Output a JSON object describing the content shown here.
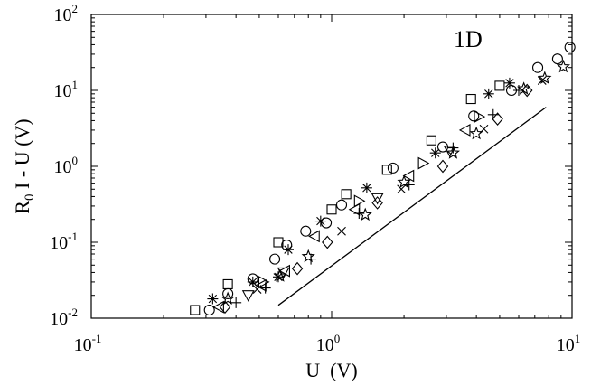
{
  "chart_data": {
    "type": "scatter",
    "title": "",
    "annotation": "1D",
    "xlabel": "U  (V)",
    "ylabel": {
      "base": "R",
      "sub": "0",
      "rest": " I - U (V)"
    },
    "xscale": "log",
    "yscale": "log",
    "xlim": [
      0.1,
      10
    ],
    "ylim": [
      0.01,
      100
    ],
    "grid": false,
    "x_ticks": [
      {
        "base": "10",
        "exp": "-1",
        "value": 0.1
      },
      {
        "base": "10",
        "exp": "0",
        "value": 1
      },
      {
        "base": "10",
        "exp": "1",
        "value": 10
      }
    ],
    "y_ticks": [
      {
        "base": "10",
        "exp": "-2",
        "value": 0.01
      },
      {
        "base": "10",
        "exp": "-1",
        "value": 0.1
      },
      {
        "base": "10",
        "exp": "0",
        "value": 1
      },
      {
        "base": "10",
        "exp": "1",
        "value": 10
      },
      {
        "base": "10",
        "exp": "2",
        "value": 100
      }
    ],
    "reference_line": {
      "x": [
        0.6,
        7.8
      ],
      "y": [
        0.0148,
        6.0
      ]
    },
    "series": [
      {
        "marker": "square",
        "points": [
          [
            0.27,
            0.0128
          ],
          [
            0.37,
            0.028
          ],
          [
            0.6,
            0.1
          ],
          [
            1.0,
            0.27
          ],
          [
            1.15,
            0.43
          ],
          [
            1.7,
            0.9
          ],
          [
            2.6,
            2.2
          ],
          [
            3.8,
            7.7
          ],
          [
            5.0,
            11.5
          ]
        ]
      },
      {
        "marker": "circle",
        "points": [
          [
            0.31,
            0.0128
          ],
          [
            0.37,
            0.021
          ],
          [
            0.47,
            0.033
          ],
          [
            0.58,
            0.06
          ],
          [
            0.65,
            0.092
          ],
          [
            0.78,
            0.14
          ],
          [
            0.95,
            0.18
          ],
          [
            1.1,
            0.31
          ],
          [
            1.8,
            0.95
          ],
          [
            2.9,
            1.8
          ],
          [
            3.9,
            4.6
          ],
          [
            5.6,
            10.0
          ],
          [
            7.2,
            20.0
          ],
          [
            8.7,
            26.0
          ],
          [
            9.8,
            37.0
          ]
        ]
      },
      {
        "marker": "asterisk",
        "points": [
          [
            0.32,
            0.018
          ],
          [
            0.47,
            0.03
          ],
          [
            0.6,
            0.035
          ],
          [
            0.66,
            0.08
          ],
          [
            0.9,
            0.19
          ],
          [
            1.4,
            0.52
          ],
          [
            2.7,
            1.5
          ],
          [
            4.5,
            9.0
          ],
          [
            5.5,
            12.5
          ]
        ]
      },
      {
        "marker": "triangle-left",
        "points": [
          [
            0.34,
            0.014
          ],
          [
            0.51,
            0.027
          ],
          [
            0.64,
            0.042
          ],
          [
            0.85,
            0.12
          ],
          [
            1.25,
            0.27
          ],
          [
            2.1,
            0.75
          ],
          [
            3.6,
            3.0
          ]
        ]
      },
      {
        "marker": "triangle-right",
        "points": [
          [
            0.52,
            0.03
          ],
          [
            1.3,
            0.35
          ],
          [
            2.4,
            1.1
          ],
          [
            4.1,
            4.5
          ]
        ]
      },
      {
        "marker": "diamond",
        "points": [
          [
            0.36,
            0.014
          ],
          [
            0.72,
            0.045
          ],
          [
            0.96,
            0.1
          ],
          [
            1.55,
            0.33
          ],
          [
            2.9,
            1.0
          ],
          [
            4.9,
            4.2
          ],
          [
            6.5,
            10.0
          ]
        ]
      },
      {
        "marker": "triangle-down",
        "points": [
          [
            0.45,
            0.02
          ],
          [
            0.63,
            0.04
          ],
          [
            1.55,
            0.38
          ],
          [
            3.1,
            1.6
          ]
        ]
      },
      {
        "marker": "plus",
        "points": [
          [
            0.4,
            0.016
          ],
          [
            0.53,
            0.025
          ],
          [
            0.82,
            0.06
          ],
          [
            1.3,
            0.24
          ],
          [
            2.1,
            0.57
          ],
          [
            3.2,
            1.75
          ],
          [
            4.7,
            4.8
          ],
          [
            6.0,
            10.0
          ]
        ]
      },
      {
        "marker": "cross",
        "points": [
          [
            0.49,
            0.024
          ],
          [
            1.1,
            0.14
          ],
          [
            1.95,
            0.5
          ],
          [
            4.3,
            3.1
          ],
          [
            7.5,
            13.5
          ]
        ]
      },
      {
        "marker": "star",
        "points": [
          [
            0.37,
            0.018
          ],
          [
            0.61,
            0.036
          ],
          [
            0.8,
            0.065
          ],
          [
            1.38,
            0.23
          ],
          [
            2.0,
            0.62
          ],
          [
            3.2,
            1.5
          ],
          [
            4.0,
            2.7
          ],
          [
            6.3,
            10.5
          ],
          [
            7.7,
            14.5
          ],
          [
            9.2,
            20.5
          ]
        ]
      }
    ]
  }
}
